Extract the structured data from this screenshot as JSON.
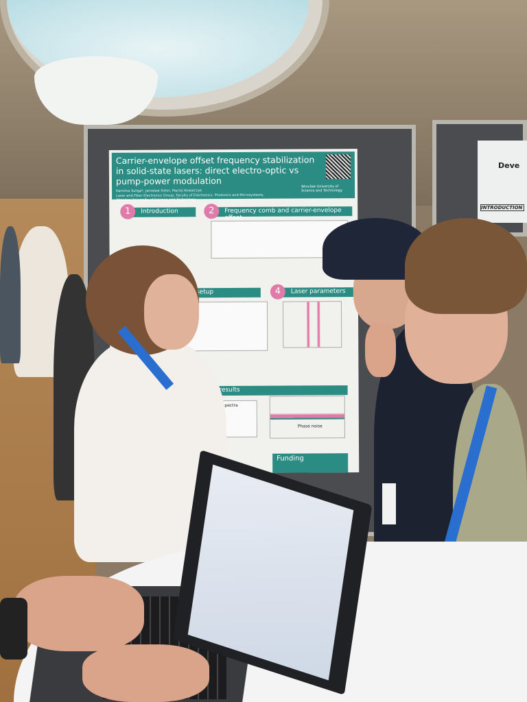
{
  "poster": {
    "title": "Carrier-envelope offset frequency stabilization in solid-state lasers: direct electro-optic vs pump-power modulation",
    "authors": "Karolina Suliga*, Jarosław Sotor, Maciej Kowalczyk",
    "affiliation": "Laser and Fiber Electronics Group, Faculty of Electronics, Photonics and Microsystems, Wroclaw University of Science and Technology",
    "university": "Wrocław University of Science and Technology",
    "sections": [
      {
        "num": "1",
        "label": "Introduction"
      },
      {
        "num": "2",
        "label": "Frequency comb and carrier-envelope offset"
      },
      {
        "num": "",
        "label": "setup"
      },
      {
        "num": "4",
        "label": "Laser parameters"
      },
      {
        "num": "",
        "label": "ization results"
      },
      {
        "num": "",
        "label": "Funding"
      }
    ],
    "charts": {
      "rf": "RF spectra",
      "phase": "Phase noise"
    },
    "colors": {
      "teal": "#2b8c84",
      "pink": "#e07aa8"
    }
  },
  "neighbor_poster": {
    "title": "Deve",
    "section": "INTRODUCTION"
  }
}
